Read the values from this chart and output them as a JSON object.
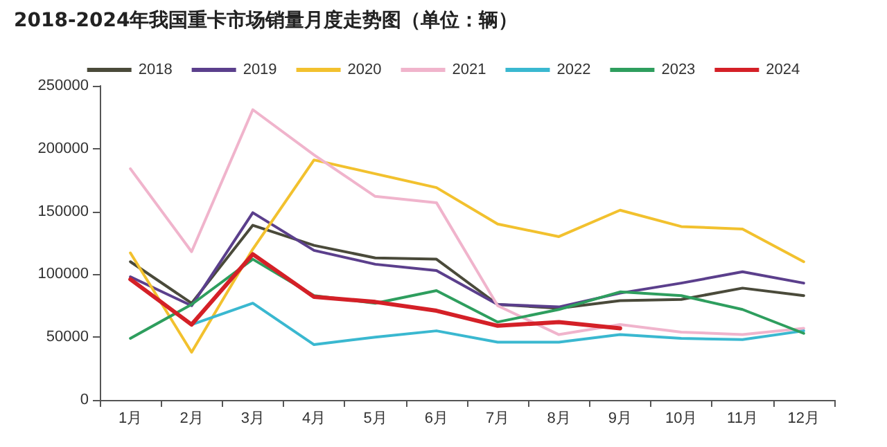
{
  "chart_data": {
    "type": "line",
    "title": "2018-2024年我国重卡市场销量月度走势图（单位：辆）",
    "categories": [
      "1月",
      "2月",
      "3月",
      "4月",
      "5月",
      "6月",
      "7月",
      "8月",
      "9月",
      "10月",
      "11月",
      "12月"
    ],
    "series": [
      {
        "name": "2018",
        "color": "#4a4a3a",
        "values": [
          110000,
          77000,
          139000,
          123000,
          113000,
          112000,
          76000,
          73000,
          79000,
          80000,
          89000,
          83000
        ]
      },
      {
        "name": "2019",
        "color": "#5b3f8c",
        "values": [
          98000,
          75000,
          149000,
          119000,
          108000,
          103000,
          76000,
          74000,
          85000,
          93000,
          102000,
          93000
        ]
      },
      {
        "name": "2020",
        "color": "#f2c12e",
        "values": [
          117000,
          38000,
          120000,
          191000,
          180000,
          169000,
          140000,
          130000,
          151000,
          138000,
          136000,
          110000
        ]
      },
      {
        "name": "2021",
        "color": "#f0b4cc",
        "values": [
          184000,
          118000,
          231000,
          195000,
          162000,
          157000,
          75000,
          52000,
          60000,
          54000,
          52000,
          57000
        ]
      },
      {
        "name": "2022",
        "color": "#3ab8d0",
        "values": [
          96000,
          60000,
          77000,
          44000,
          50000,
          55000,
          46000,
          46000,
          52000,
          49000,
          48000,
          55000
        ]
      },
      {
        "name": "2023",
        "color": "#2e9e5e",
        "values": [
          49000,
          76000,
          112000,
          83000,
          77000,
          87000,
          62000,
          72000,
          86000,
          83000,
          72000,
          53000
        ]
      },
      {
        "name": "2024",
        "color": "#d42027",
        "values": [
          96000,
          60000,
          116000,
          82000,
          78000,
          71000,
          59000,
          62000,
          57000,
          null,
          null,
          null
        ]
      }
    ],
    "ylim": [
      0,
      250000
    ],
    "yticks": [
      0,
      50000,
      100000,
      150000,
      200000,
      250000
    ],
    "grid": false,
    "legend": "top",
    "marker": "none",
    "line_style": "solid"
  }
}
